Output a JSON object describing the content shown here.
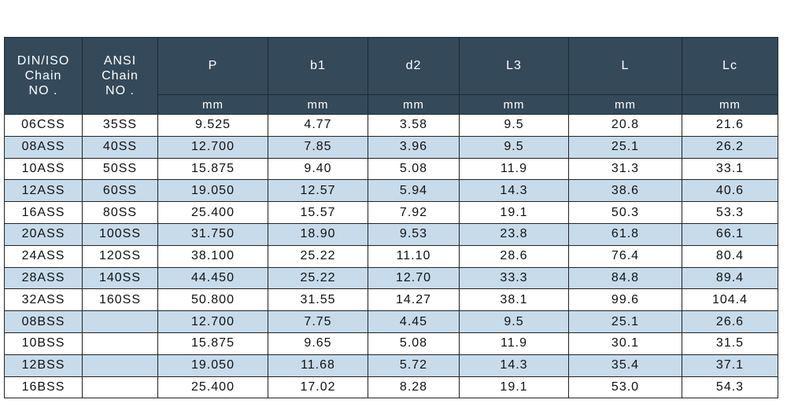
{
  "table": {
    "header": {
      "group": [
        [
          "DIN/ISO",
          "Chain",
          "NO ."
        ],
        [
          "ANSI",
          "Chain",
          "NO ."
        ]
      ],
      "columns": [
        "P",
        "b1",
        "d2",
        "L3",
        "L",
        "Lc"
      ],
      "units": [
        "mm",
        "mm",
        "mm",
        "mm",
        "mm",
        "mm"
      ]
    },
    "rows": [
      [
        "06CSS",
        "35SS",
        "9.525",
        "4.77",
        "3.58",
        "9.5",
        "20.8",
        "21.6"
      ],
      [
        "08ASS",
        "40SS",
        "12.700",
        "7.85",
        "3.96",
        "9.5",
        "25.1",
        "26.2"
      ],
      [
        "10ASS",
        "50SS",
        "15.875",
        "9.40",
        "5.08",
        "11.9",
        "31.3",
        "33.1"
      ],
      [
        "12ASS",
        "60SS",
        "19.050",
        "12.57",
        "5.94",
        "14.3",
        "38.6",
        "40.6"
      ],
      [
        "16ASS",
        "80SS",
        "25.400",
        "15.57",
        "7.92",
        "19.1",
        "50.3",
        "53.3"
      ],
      [
        "20ASS",
        "100SS",
        "31.750",
        "18.90",
        "9.53",
        "23.8",
        "61.8",
        "66.1"
      ],
      [
        "24ASS",
        "120SS",
        "38.100",
        "25.22",
        "11.10",
        "28.6",
        "76.4",
        "80.4"
      ],
      [
        "28ASS",
        "140SS",
        "44.450",
        "25.22",
        "12.70",
        "33.3",
        "84.8",
        "89.4"
      ],
      [
        "32ASS",
        "160SS",
        "50.800",
        "31.55",
        "14.27",
        "38.1",
        "99.6",
        "104.4"
      ],
      [
        "08BSS",
        null,
        "12.700",
        "7.75",
        "4.45",
        "9.5",
        "25.1",
        "26.6"
      ],
      [
        "10BSS",
        null,
        "15.875",
        "9.65",
        "5.08",
        "11.9",
        "30.1",
        "31.5"
      ],
      [
        "12BSS",
        null,
        "19.050",
        "11.68",
        "5.72",
        "14.3",
        "35.4",
        "37.1"
      ],
      [
        "16BSS",
        null,
        "25.400",
        "17.02",
        "8.28",
        "19.1",
        "53.0",
        "54.3"
      ]
    ]
  }
}
